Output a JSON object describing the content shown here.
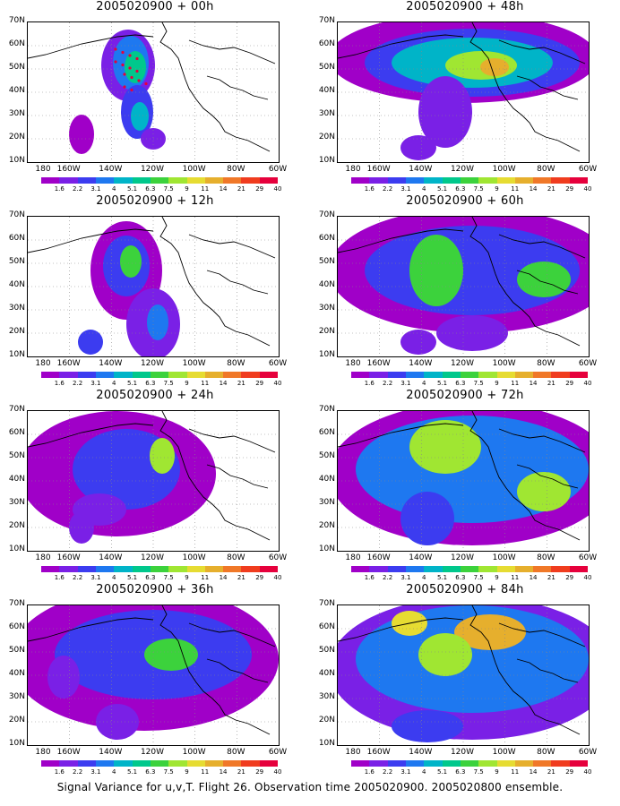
{
  "panels": [
    {
      "title": "2005020900 + 00h"
    },
    {
      "title": "2005020900 + 48h"
    },
    {
      "title": "2005020900 + 12h"
    },
    {
      "title": "2005020900 + 60h"
    },
    {
      "title": "2005020900 + 24h"
    },
    {
      "title": "2005020900 + 72h"
    },
    {
      "title": "2005020900 + 36h"
    },
    {
      "title": "2005020900 + 84h"
    }
  ],
  "lat_labels": [
    "70N",
    "60N",
    "50N",
    "40N",
    "30N",
    "20N",
    "10N"
  ],
  "lon_labels": [
    "180",
    "160W",
    "140W",
    "120W",
    "100W",
    "80W",
    "60W"
  ],
  "colorbar": {
    "colors": [
      "#a000c8",
      "#7a20e6",
      "#3c3cf0",
      "#1e78f0",
      "#00b4c8",
      "#00c88c",
      "#3cd23c",
      "#a0e632",
      "#e6dc32",
      "#e6af2d",
      "#f07828",
      "#f03c1e",
      "#e6003c"
    ],
    "labels": [
      "1.6",
      "2.2",
      "3.1",
      "4",
      "5.1",
      "6.3",
      "7.5",
      "9",
      "11",
      "14",
      "21",
      "29",
      "40"
    ]
  },
  "footer": "Signal Variance for u,v,T. Flight 26. Observation time 2005020900. 2005020800 ensemble."
}
